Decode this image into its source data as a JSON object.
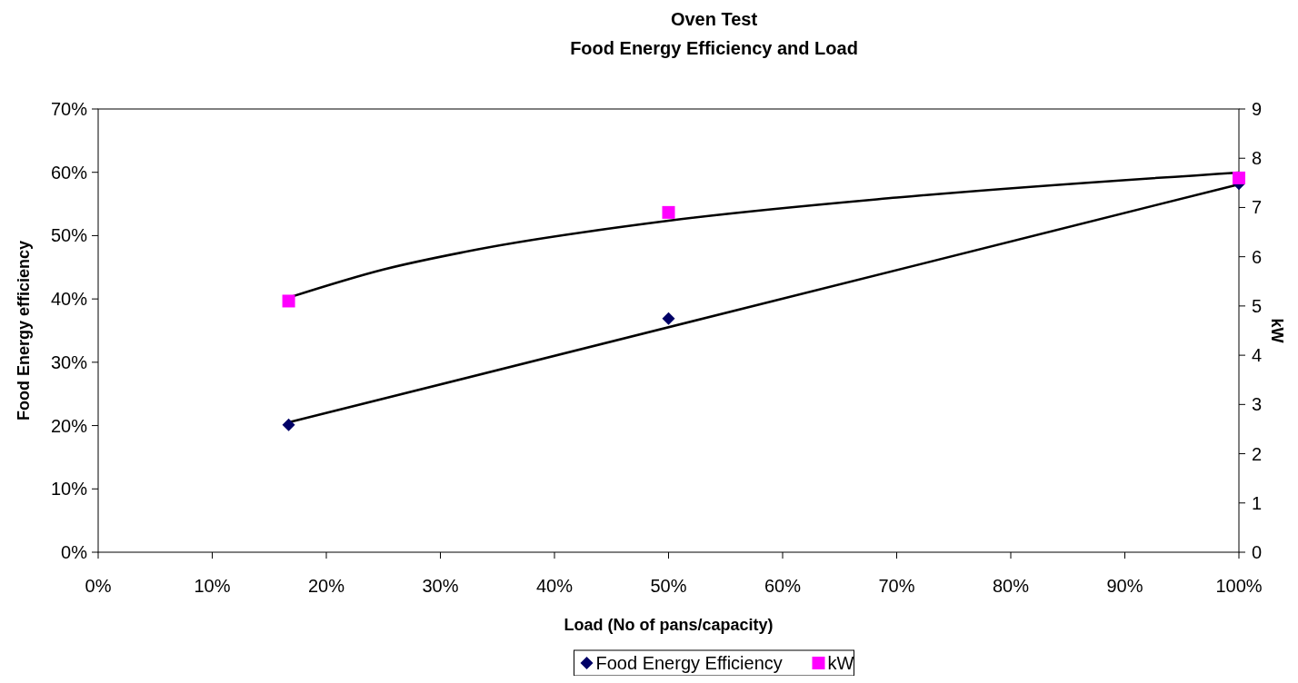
{
  "chart_data": {
    "type": "scatter",
    "title": "Oven Test",
    "subtitle": "Food Energy Efficiency and Load",
    "xlabel": "Load (No of pans/capacity)",
    "ylabel": "Food Energy efficiency",
    "y2label": "kW",
    "xlim": [
      0,
      100
    ],
    "xticks": [
      {
        "value": 0,
        "label": "0%"
      },
      {
        "value": 10,
        "label": "10%"
      },
      {
        "value": 20,
        "label": "20%"
      },
      {
        "value": 30,
        "label": "30%"
      },
      {
        "value": 40,
        "label": "40%"
      },
      {
        "value": 50,
        "label": "50%"
      },
      {
        "value": 60,
        "label": "60%"
      },
      {
        "value": 70,
        "label": "70%"
      },
      {
        "value": 80,
        "label": "80%"
      },
      {
        "value": 90,
        "label": "90%"
      },
      {
        "value": 100,
        "label": "100%"
      }
    ],
    "ylim": [
      0,
      70
    ],
    "yticks": [
      {
        "value": 0,
        "label": "0%"
      },
      {
        "value": 10,
        "label": "10%"
      },
      {
        "value": 20,
        "label": "20%"
      },
      {
        "value": 30,
        "label": "30%"
      },
      {
        "value": 40,
        "label": "40%"
      },
      {
        "value": 50,
        "label": "50%"
      },
      {
        "value": 60,
        "label": "60%"
      },
      {
        "value": 70,
        "label": "70%"
      }
    ],
    "y2lim": [
      0,
      9
    ],
    "y2ticks": [
      0,
      1,
      2,
      3,
      4,
      5,
      6,
      7,
      8,
      9
    ],
    "grid": false,
    "legend": "bottom",
    "series": [
      {
        "name": "Food Energy Efficiency",
        "marker": "diamond",
        "color": "#000066",
        "x": [
          16.7,
          50,
          100
        ],
        "values": [
          20.1,
          36.9,
          58.2
        ]
      },
      {
        "name": "kW",
        "marker": "square",
        "color": "#ff00ff",
        "axis": "y2",
        "x": [
          16.7,
          50,
          100
        ],
        "values": [
          5.1,
          6.9,
          7.6
        ]
      },
      {
        "type": "line",
        "color": "#000000",
        "x": [
          16.7,
          100
        ],
        "values": [
          20.5,
          58.1
        ]
      },
      {
        "type": "line",
        "color": "#000000",
        "axis": "y2",
        "x": [
          16.7,
          25,
          33.3,
          50,
          70,
          100
        ],
        "values": [
          5.17,
          5.74,
          6.15,
          6.73,
          7.2,
          7.71
        ]
      }
    ]
  }
}
